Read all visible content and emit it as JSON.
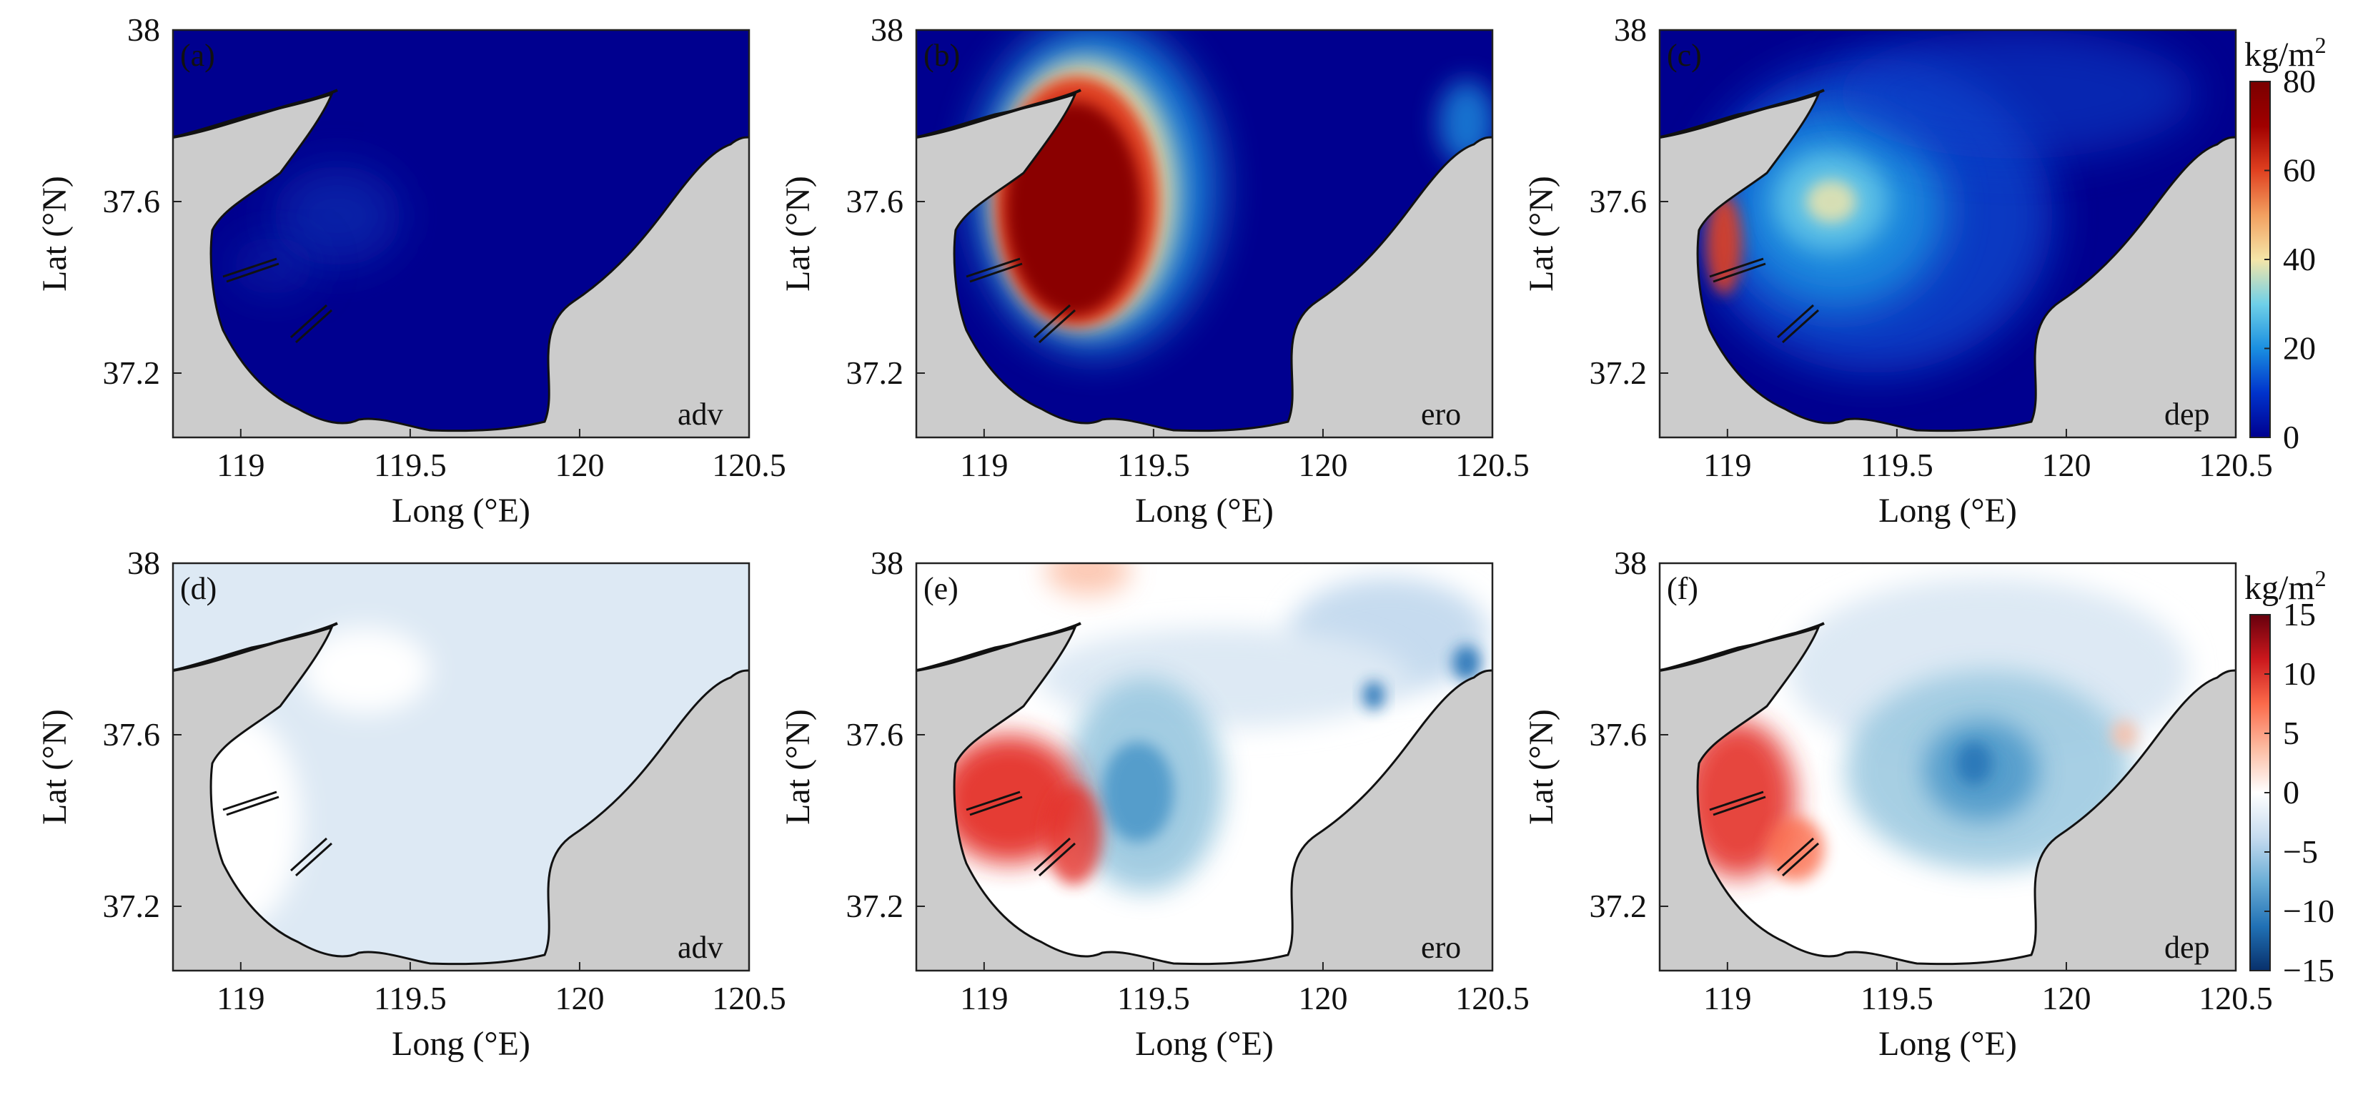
{
  "chart_data": {
    "type": "heatmap",
    "panel_rows": [
      {
        "colorbar": {
          "unit_main": "kg/m",
          "unit_sup": "2",
          "range": [
            0,
            80
          ],
          "ticks": [
            {
              "value": 80,
              "label": "80"
            },
            {
              "value": 60,
              "label": "60"
            },
            {
              "value": 40,
              "label": "40"
            },
            {
              "value": 20,
              "label": "20"
            },
            {
              "value": 0,
              "label": "0"
            }
          ],
          "colormap": [
            "#00008f",
            "#0033cc",
            "#1a8fe0",
            "#6fd0e8",
            "#f5e6a8",
            "#f2a060",
            "#e04020",
            "#a00000",
            "#7a0000"
          ]
        },
        "panels": [
          {
            "id": "a",
            "label": "(a)",
            "tag": "adv"
          },
          {
            "id": "b",
            "label": "(b)",
            "tag": "ero"
          },
          {
            "id": "c",
            "label": "(c)",
            "tag": "dep"
          }
        ]
      },
      {
        "colorbar": {
          "unit_main": "kg/m",
          "unit_sup": "2",
          "range": [
            -15,
            15
          ],
          "ticks": [
            {
              "value": 15,
              "label": "15"
            },
            {
              "value": 10,
              "label": "10"
            },
            {
              "value": 5,
              "label": "5"
            },
            {
              "value": 0,
              "label": "0"
            },
            {
              "value": -5,
              "label": "−5"
            },
            {
              "value": -10,
              "label": "−10"
            },
            {
              "value": -15,
              "label": "−15"
            }
          ],
          "colormap": [
            "#08306b",
            "#2171b5",
            "#6baed6",
            "#c6dbef",
            "#ffffff",
            "#fcbba1",
            "#fb6a4a",
            "#cb181d",
            "#67000d"
          ]
        },
        "panels": [
          {
            "id": "d",
            "label": "(d)",
            "tag": "adv"
          },
          {
            "id": "e",
            "label": "(e)",
            "tag": "ero"
          },
          {
            "id": "f",
            "label": "(f)",
            "tag": "dep"
          }
        ]
      }
    ],
    "xlabel": "Long (°E)",
    "ylabel": "Lat (°N)",
    "xlim": [
      118.8,
      120.5
    ],
    "ylim": [
      37.05,
      38.0
    ],
    "xticks": [
      {
        "value": 119,
        "label": "119"
      },
      {
        "value": 119.5,
        "label": "119.5"
      },
      {
        "value": 120,
        "label": "120"
      },
      {
        "value": 120.5,
        "label": "120.5"
      }
    ],
    "yticks": [
      {
        "value": 38,
        "label": "38"
      },
      {
        "value": 37.6,
        "label": "37.6"
      },
      {
        "value": 37.2,
        "label": "37.2"
      }
    ],
    "land_color": "#cccccc",
    "coastline_color": "#111111",
    "grid": false
  }
}
